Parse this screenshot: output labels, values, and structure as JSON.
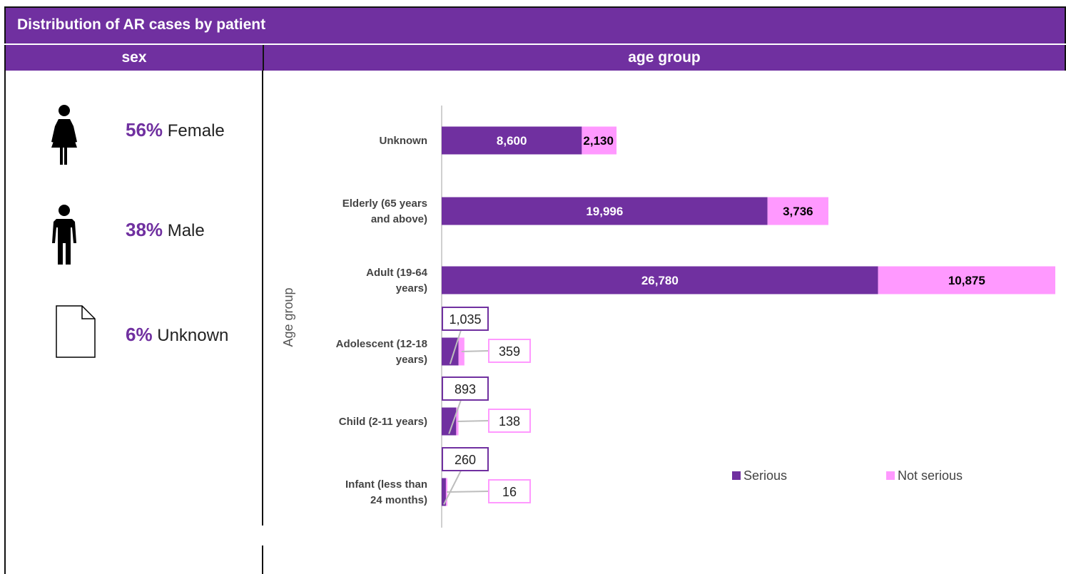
{
  "title": "Distribution of AR cases by patient",
  "columns": {
    "sex": "sex",
    "age": "age group"
  },
  "colors": {
    "serious": "#7030a0",
    "not_serious": "#ff99ff",
    "header": "#7030a0"
  },
  "sex": [
    {
      "pct": "56%",
      "label": "Female",
      "icon": "female-icon"
    },
    {
      "pct": "38%",
      "label": "Male",
      "icon": "male-icon"
    },
    {
      "pct": "6%",
      "label": "Unknown",
      "icon": "document-icon"
    }
  ],
  "chart_data": {
    "type": "bar",
    "orientation": "horizontal",
    "stacked": true,
    "categories": [
      "Unknown",
      "Elderly (65 years and above)",
      "Adult (19-64 years)",
      "Adolescent (12-18 years)",
      "Child (2-11 years)",
      "Infant (less than 24 months)"
    ],
    "series": [
      {
        "name": "Serious",
        "values": [
          8600,
          19996,
          26780,
          1035,
          893,
          260
        ]
      },
      {
        "name": "Not serious",
        "values": [
          2130,
          3736,
          10875,
          359,
          138,
          16
        ]
      }
    ],
    "value_labels": {
      "Serious": [
        "8,600",
        "19,996",
        "26,780",
        "1,035",
        "893",
        "260"
      ],
      "Not serious": [
        "2,130",
        "3,736",
        "10,875",
        "359",
        "138",
        "16"
      ]
    },
    "ylabel": "Age group",
    "xlim": [
      0,
      37655
    ],
    "grid": false,
    "legend": "bottom-right"
  }
}
